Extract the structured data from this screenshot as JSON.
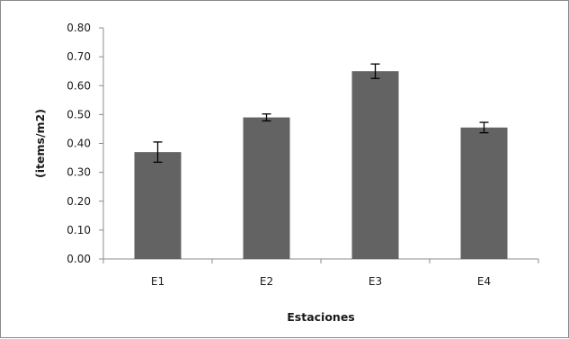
{
  "chart_data": {
    "type": "bar",
    "title": "",
    "xlabel": "Estaciones",
    "ylabel": "(items/m2)",
    "categories": [
      "E1",
      "E2",
      "E3",
      "E4"
    ],
    "values": [
      0.37,
      0.49,
      0.65,
      0.455
    ],
    "error": [
      0.035,
      0.012,
      0.025,
      0.018
    ],
    "ylim": [
      0,
      0.8
    ],
    "yticks": [
      "0.00",
      "0.10",
      "0.20",
      "0.30",
      "0.40",
      "0.50",
      "0.60",
      "0.70",
      "0.80"
    ],
    "grid": false,
    "legend": "none",
    "bar_color": "#636363",
    "axis_color": "#8c8c8c"
  }
}
